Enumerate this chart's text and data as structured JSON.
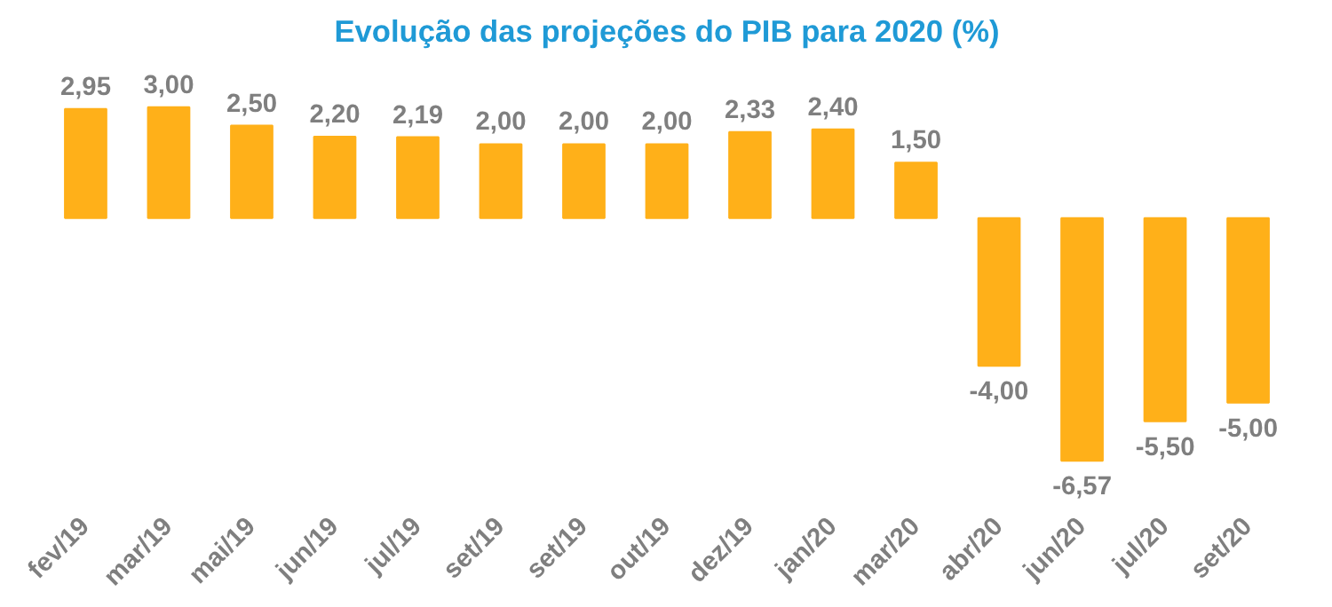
{
  "chart_data": {
    "type": "bar",
    "title": "Evolução das projeções do PIB para 2020 (%)",
    "categories": [
      "fev/19",
      "mar/19",
      "mai/19",
      "jun/19",
      "jul/19",
      "set/19",
      "set/19",
      "out/19",
      "dez/19",
      "jan/20",
      "mar/20",
      "abr/20",
      "jun/20",
      "jul/20",
      "set/20"
    ],
    "values": [
      2.95,
      3.0,
      2.5,
      2.2,
      2.19,
      2.0,
      2.0,
      2.0,
      2.33,
      2.4,
      1.5,
      -4.0,
      -6.57,
      -5.5,
      -5.0
    ],
    "value_labels": [
      "2,95",
      "3,00",
      "2,50",
      "2,20",
      "2,19",
      "2,00",
      "2,00",
      "2,00",
      "2,33",
      "2,40",
      "1,50",
      "-4,00",
      "-6,57",
      "-5,50",
      "-5,00"
    ],
    "color": "#ffb019"
  }
}
